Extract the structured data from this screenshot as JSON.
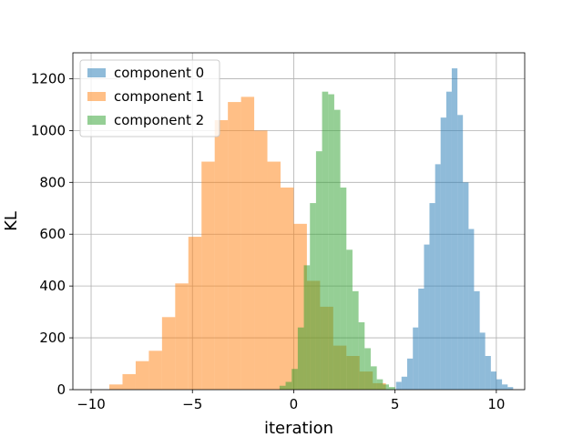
{
  "chart_data": {
    "type": "bar",
    "title": "",
    "xlabel": "iteration",
    "ylabel": "KL",
    "xlim": [
      -10.9,
      11.4
    ],
    "ylim": [
      0,
      1300
    ],
    "xticks": [
      -10,
      -5,
      0,
      5,
      10
    ],
    "yticks": [
      0,
      200,
      400,
      600,
      800,
      1000,
      1200
    ],
    "grid": true,
    "legend_position": "top-left",
    "bar_alpha": 0.5,
    "series": [
      {
        "name": "component 0",
        "color": "#1f77b4",
        "bin_edges": [
          5.05,
          5.32,
          5.6,
          5.88,
          6.15,
          6.43,
          6.7,
          6.98,
          7.25,
          7.53,
          7.8,
          8.08,
          8.35,
          8.63,
          8.9,
          9.18,
          9.45,
          9.73,
          10.0,
          10.28,
          10.56,
          10.83
        ],
        "counts": [
          30,
          50,
          120,
          240,
          390,
          560,
          720,
          870,
          1050,
          1150,
          1240,
          1060,
          800,
          620,
          380,
          220,
          130,
          70,
          40,
          20,
          10
        ]
      },
      {
        "name": "component 1",
        "color": "#ff7f0e",
        "bin_edges": [
          -9.1,
          -8.45,
          -7.8,
          -7.15,
          -6.5,
          -5.85,
          -5.2,
          -4.55,
          -3.9,
          -3.25,
          -2.6,
          -1.95,
          -1.3,
          -0.65,
          0.0,
          0.65,
          1.3,
          1.95,
          2.6,
          3.25,
          3.9,
          4.55
        ],
        "counts": [
          20,
          60,
          110,
          150,
          280,
          410,
          590,
          880,
          1040,
          1110,
          1130,
          1000,
          880,
          780,
          640,
          420,
          320,
          170,
          130,
          70,
          25
        ]
      },
      {
        "name": "component 2",
        "color": "#2ca02c",
        "bin_edges": [
          -0.7,
          -0.4,
          -0.1,
          0.2,
          0.5,
          0.8,
          1.1,
          1.4,
          1.7,
          2.0,
          2.3,
          2.6,
          2.9,
          3.2,
          3.5,
          3.8,
          4.1,
          4.4,
          4.7,
          5.0
        ],
        "counts": [
          15,
          30,
          80,
          240,
          480,
          720,
          920,
          1150,
          1140,
          1080,
          780,
          540,
          380,
          260,
          160,
          90,
          40,
          20,
          10
        ]
      }
    ]
  }
}
